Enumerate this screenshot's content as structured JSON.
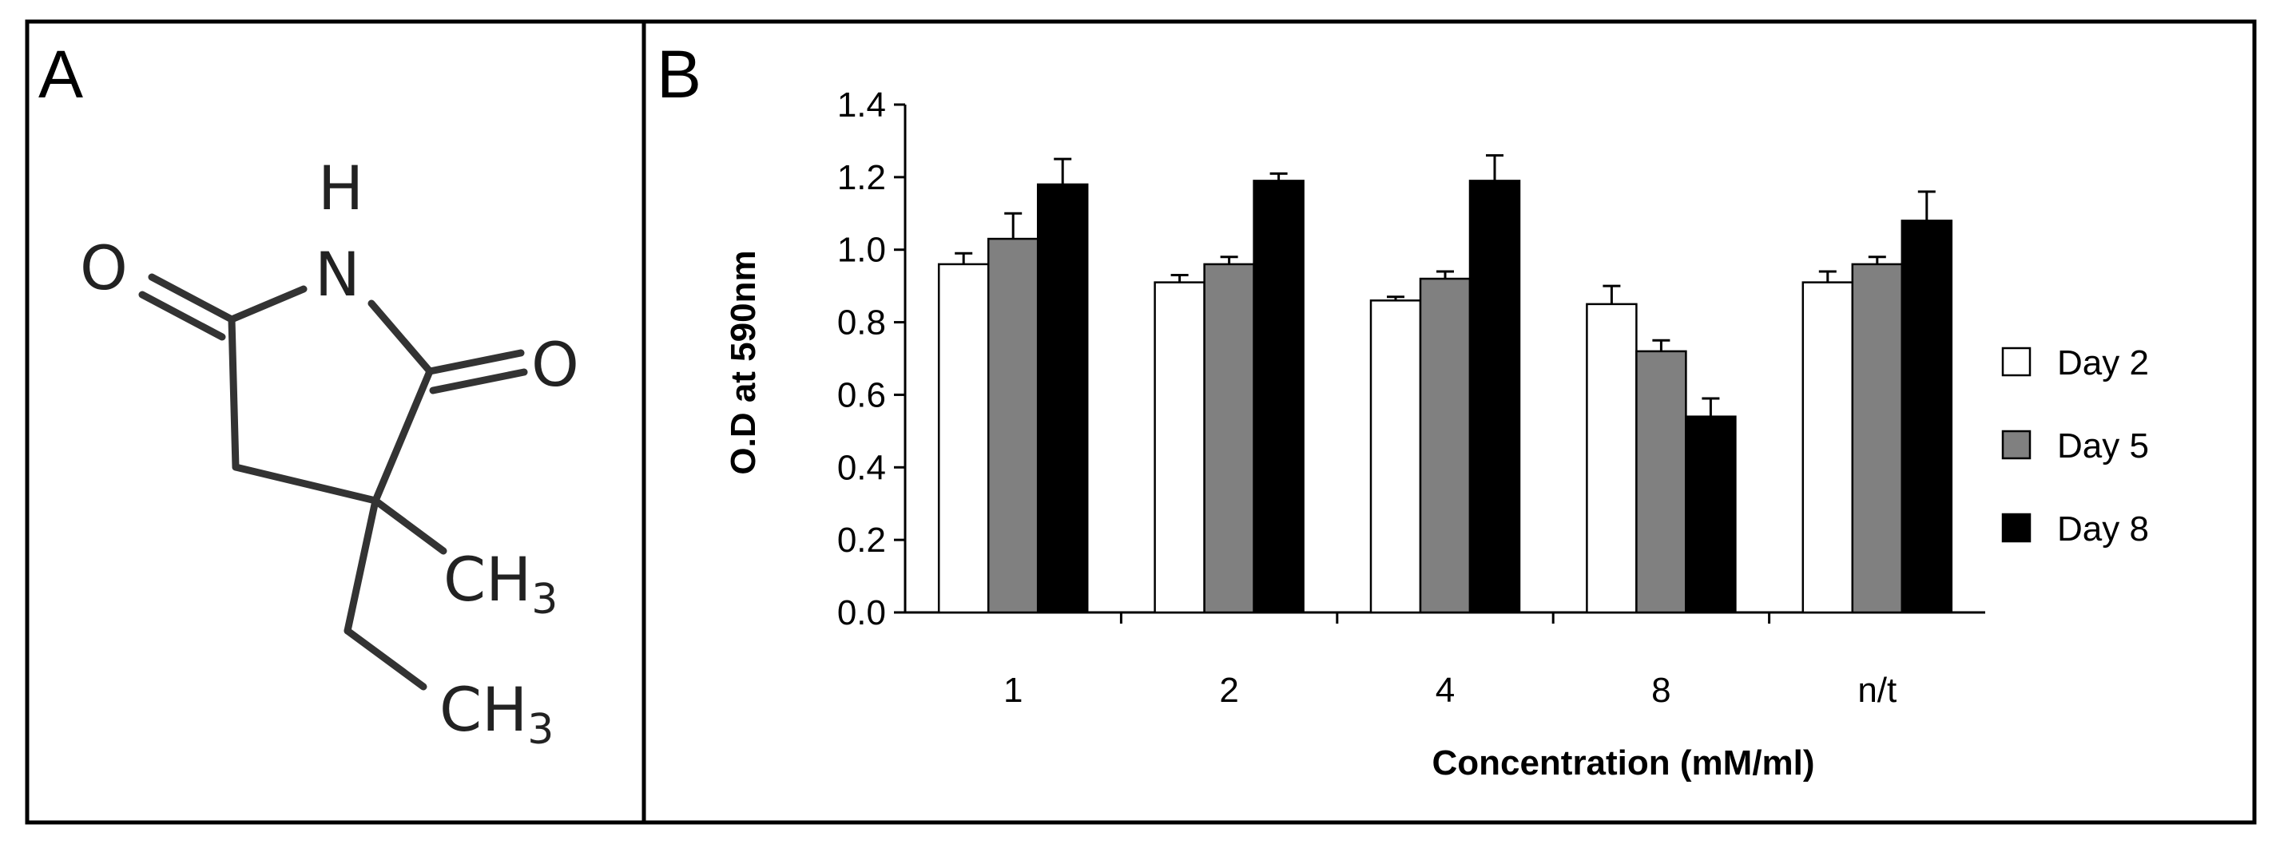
{
  "panel_a": {
    "letter": "A",
    "atoms": {
      "h": "H",
      "n": "N",
      "o_left": "O",
      "o_right": "O",
      "methyl_c": "CH",
      "methyl_sub": "3",
      "ethyl_c": "CH",
      "ethyl_sub": "3"
    }
  },
  "panel_b": {
    "letter": "B"
  },
  "chart_data": {
    "type": "bar",
    "title": "",
    "xlabel": "Concentration (mM/ml)",
    "ylabel": "O.D at 590nm",
    "ylim": [
      0,
      1.4
    ],
    "yticks": [
      "0.0",
      "0.2",
      "0.4",
      "0.6",
      "0.8",
      "1.0",
      "1.2",
      "1.4"
    ],
    "categories": [
      "1",
      "2",
      "4",
      "8",
      "n/t"
    ],
    "series": [
      {
        "name": "Day 2",
        "color": "#ffffff",
        "values": [
          0.96,
          0.91,
          0.86,
          0.85,
          0.91
        ],
        "errors": [
          0.03,
          0.02,
          0.01,
          0.05,
          0.03
        ]
      },
      {
        "name": "Day 5",
        "color": "#808080",
        "values": [
          1.03,
          0.96,
          0.92,
          0.72,
          0.96
        ],
        "errors": [
          0.07,
          0.02,
          0.02,
          0.03,
          0.02
        ]
      },
      {
        "name": "Day 8",
        "color": "#000000",
        "values": [
          1.18,
          1.19,
          1.19,
          0.54,
          1.08
        ],
        "errors": [
          0.07,
          0.02,
          0.07,
          0.05,
          0.08
        ]
      }
    ],
    "legend": {
      "position": "right",
      "labels": [
        "Day 2",
        "Day 5",
        "Day 8"
      ]
    },
    "grid": false
  }
}
